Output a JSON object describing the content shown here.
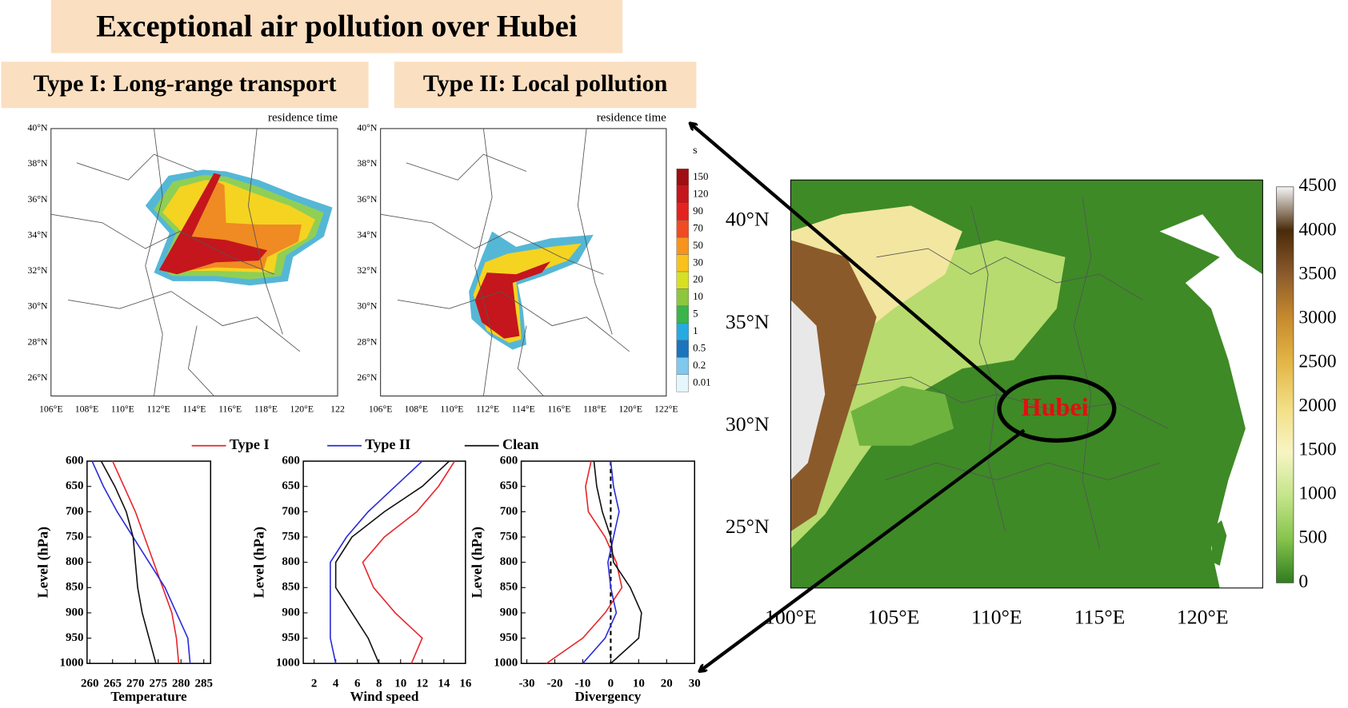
{
  "title": "Exceptional air pollution over Hubei",
  "panels": [
    {
      "label": "Type I: Long-range transport",
      "caption": "residence time",
      "lat_labels": [
        "40°N",
        "38°N",
        "36°N",
        "34°N",
        "32°N",
        "30°N",
        "28°N",
        "26°N"
      ],
      "lon_labels": [
        "106°E",
        "108°E",
        "110°E",
        "112°E",
        "114°E",
        "116°E",
        "118°E",
        "120°E",
        "122"
      ]
    },
    {
      "label": "Type II: Local pollution",
      "caption": "residence time",
      "lat_labels": [
        "40°N",
        "38°N",
        "36°N",
        "34°N",
        "32°N",
        "30°N",
        "28°N",
        "26°N"
      ],
      "lon_labels": [
        "106°E",
        "108°E",
        "110°E",
        "112°E",
        "114°E",
        "116°E",
        "118°E",
        "120°E",
        "122°E"
      ]
    }
  ],
  "residence_colorbar": {
    "unit": "s",
    "labels": [
      "150",
      "120",
      "90",
      "70",
      "50",
      "30",
      "20",
      "10",
      "5",
      "1",
      "0.5",
      "0.2",
      "0.01"
    ]
  },
  "terrain_map": {
    "region_label": "Hubei",
    "lat_labels": [
      "40°N",
      "35°N",
      "30°N",
      "25°N"
    ],
    "lon_labels": [
      "100°E",
      "105°E",
      "110°E",
      "115°E",
      "120°E"
    ],
    "colorbar_labels": [
      "4500",
      "4000",
      "3500",
      "3000",
      "2500",
      "2000",
      "1500",
      "1000",
      "500",
      "0"
    ]
  },
  "legend": [
    {
      "name": "Type I",
      "color": "#e8262b"
    },
    {
      "name": "Type II",
      "color": "#2b2bd9"
    },
    {
      "name": "Clean",
      "color": "#111111"
    }
  ],
  "chart_data": [
    {
      "type": "line",
      "xlabel": "Temperature",
      "ylabel": "Level (hPa)",
      "y": [
        600,
        650,
        700,
        750,
        800,
        850,
        900,
        950,
        1000
      ],
      "ylim": [
        600,
        1000
      ],
      "y_inverted": true,
      "yticks": [
        600,
        650,
        700,
        750,
        800,
        850,
        900,
        950,
        1000
      ],
      "xlim": [
        259.4,
        286.5
      ],
      "xticks": [
        260,
        265,
        270,
        275,
        280,
        285
      ],
      "series": [
        {
          "values": [
            265,
            267.5,
            270,
            272,
            274,
            276,
            278,
            279,
            279.5
          ]
        },
        {
          "values": [
            260.5,
            263,
            266,
            269.5,
            273,
            276.5,
            279,
            281.5,
            282
          ]
        },
        {
          "values": [
            262.5,
            265.5,
            268,
            269.5,
            270,
            270.5,
            271.5,
            273,
            274.5
          ]
        }
      ]
    },
    {
      "type": "line",
      "xlabel": "Wind speed",
      "ylabel": "Level (hPa)",
      "y": [
        600,
        650,
        700,
        750,
        800,
        850,
        900,
        950,
        1000
      ],
      "ylim": [
        600,
        1000
      ],
      "y_inverted": true,
      "yticks": [
        600,
        650,
        700,
        750,
        800,
        850,
        900,
        950,
        1000
      ],
      "xlim": [
        1,
        16
      ],
      "xticks": [
        2,
        4,
        6,
        8,
        10,
        12,
        14,
        16
      ],
      "series": [
        {
          "values": [
            15,
            13.5,
            11.5,
            8.5,
            6.5,
            7.5,
            9.5,
            12,
            11
          ]
        },
        {
          "values": [
            12,
            9.5,
            7,
            5,
            3.5,
            3.5,
            3.5,
            3.5,
            4
          ]
        },
        {
          "values": [
            14.5,
            12,
            8.5,
            5.5,
            4,
            4,
            5.5,
            7,
            8
          ]
        }
      ]
    },
    {
      "type": "line",
      "xlabel": "Divergency",
      "ylabel": "Level (hPa)",
      "y": [
        600,
        650,
        700,
        750,
        800,
        850,
        900,
        950,
        1000
      ],
      "ylim": [
        600,
        1000
      ],
      "y_inverted": true,
      "yticks": [
        600,
        650,
        700,
        750,
        800,
        850,
        900,
        950,
        1000
      ],
      "xlim": [
        -32,
        30
      ],
      "xticks": [
        -30,
        -20,
        -10,
        0,
        10,
        20,
        30
      ],
      "zero_line": true,
      "series": [
        {
          "values": [
            -7,
            -9,
            -8,
            -2,
            2,
            4,
            -2,
            -10,
            -23
          ]
        },
        {
          "values": [
            0,
            1,
            3,
            1,
            -1,
            0,
            2,
            -2,
            -10
          ]
        },
        {
          "values": [
            -6,
            -5,
            -3,
            0,
            1,
            7,
            11,
            10,
            0
          ]
        }
      ]
    }
  ]
}
